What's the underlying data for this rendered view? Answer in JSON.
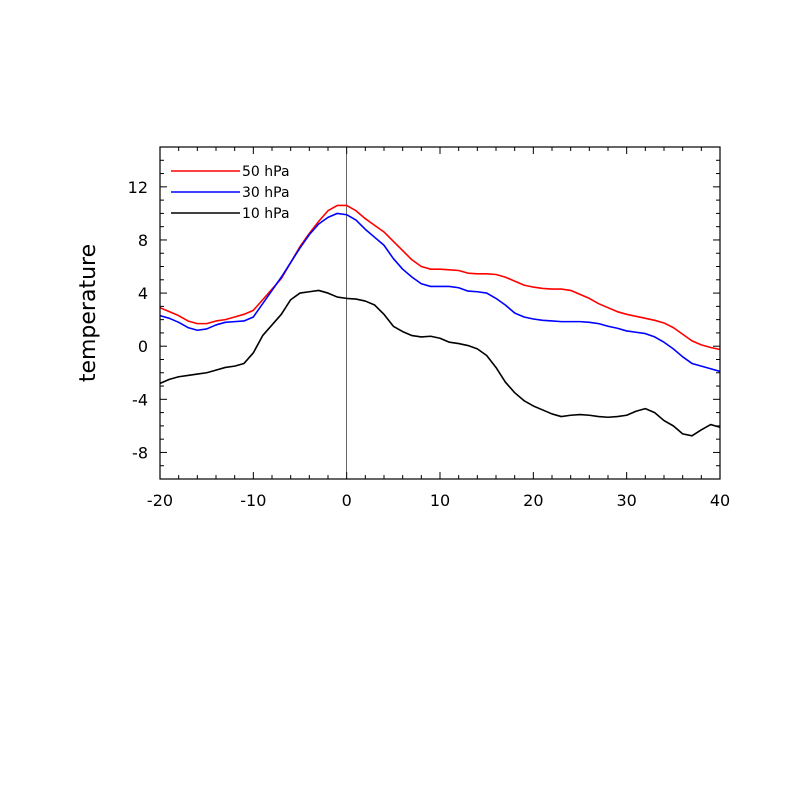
{
  "chart_data": {
    "type": "line",
    "title": "",
    "xlabel": "",
    "ylabel": "temperature",
    "xlim": [
      -20,
      40
    ],
    "ylim": [
      -10,
      15
    ],
    "x_ticks": [
      -20,
      -10,
      0,
      10,
      20,
      30,
      40
    ],
    "y_ticks": [
      -8,
      -4,
      0,
      4,
      8,
      12
    ],
    "x_tick_labels": [
      "-20",
      "-10",
      "0",
      "10",
      "20",
      "30",
      "40"
    ],
    "y_tick_labels": [
      "-8",
      "-4",
      "0",
      "4",
      "8",
      "12"
    ],
    "reference_line_x": 0,
    "legend_position": "top-left",
    "grid": false,
    "x": [
      -20,
      -19,
      -18,
      -17,
      -16,
      -15,
      -14,
      -13,
      -12,
      -11,
      -10,
      -9,
      -8,
      -7,
      -6,
      -5,
      -4,
      -3,
      -2,
      -1,
      0,
      1,
      2,
      3,
      4,
      5,
      6,
      7,
      8,
      9,
      10,
      11,
      12,
      13,
      14,
      15,
      16,
      17,
      18,
      19,
      20,
      21,
      22,
      23,
      24,
      25,
      26,
      27,
      28,
      29,
      30,
      31,
      32,
      33,
      34,
      35,
      36,
      37,
      38,
      39,
      40
    ],
    "series": [
      {
        "name": "50 hPa",
        "color": "#ff0000",
        "values": [
          2.9,
          2.6,
          2.3,
          1.9,
          1.7,
          1.7,
          1.9,
          2.0,
          2.2,
          2.4,
          2.7,
          3.5,
          4.3,
          5.1,
          6.3,
          7.5,
          8.5,
          9.4,
          10.2,
          10.6,
          10.6,
          10.2,
          9.6,
          9.1,
          8.6,
          7.9,
          7.2,
          6.5,
          6.0,
          5.8,
          5.8,
          5.75,
          5.7,
          5.5,
          5.45,
          5.45,
          5.4,
          5.2,
          4.9,
          4.6,
          4.45,
          4.35,
          4.3,
          4.3,
          4.2,
          3.9,
          3.6,
          3.2,
          2.9,
          2.6,
          2.4,
          2.25,
          2.1,
          1.95,
          1.75,
          1.4,
          0.9,
          0.4,
          0.1,
          -0.1,
          -0.25
        ]
      },
      {
        "name": "30 hPa",
        "color": "#0000ff",
        "values": [
          2.3,
          2.1,
          1.8,
          1.4,
          1.2,
          1.3,
          1.6,
          1.8,
          1.85,
          1.9,
          2.2,
          3.2,
          4.2,
          5.2,
          6.3,
          7.4,
          8.4,
          9.2,
          9.7,
          10.0,
          9.9,
          9.5,
          8.8,
          8.2,
          7.6,
          6.6,
          5.8,
          5.2,
          4.7,
          4.5,
          4.5,
          4.5,
          4.4,
          4.15,
          4.1,
          4.0,
          3.6,
          3.1,
          2.5,
          2.2,
          2.05,
          1.95,
          1.9,
          1.85,
          1.85,
          1.85,
          1.8,
          1.7,
          1.5,
          1.35,
          1.15,
          1.05,
          0.95,
          0.7,
          0.3,
          -0.2,
          -0.8,
          -1.3,
          -1.5,
          -1.7,
          -1.9
        ]
      },
      {
        "name": "10 hPa",
        "color": "#000000",
        "values": [
          -2.8,
          -2.5,
          -2.3,
          -2.2,
          -2.1,
          -2.0,
          -1.8,
          -1.6,
          -1.5,
          -1.3,
          -0.5,
          0.8,
          1.6,
          2.4,
          3.5,
          4.0,
          4.1,
          4.2,
          4.0,
          3.7,
          3.6,
          3.55,
          3.4,
          3.1,
          2.4,
          1.5,
          1.1,
          0.8,
          0.7,
          0.75,
          0.6,
          0.3,
          0.2,
          0.05,
          -0.2,
          -0.7,
          -1.6,
          -2.7,
          -3.5,
          -4.1,
          -4.5,
          -4.8,
          -5.1,
          -5.3,
          -5.2,
          -5.15,
          -5.2,
          -5.3,
          -5.35,
          -5.3,
          -5.2,
          -4.9,
          -4.7,
          -5.0,
          -5.6,
          -6.0,
          -6.6,
          -6.75,
          -6.3,
          -5.9,
          -6.1
        ]
      }
    ]
  }
}
